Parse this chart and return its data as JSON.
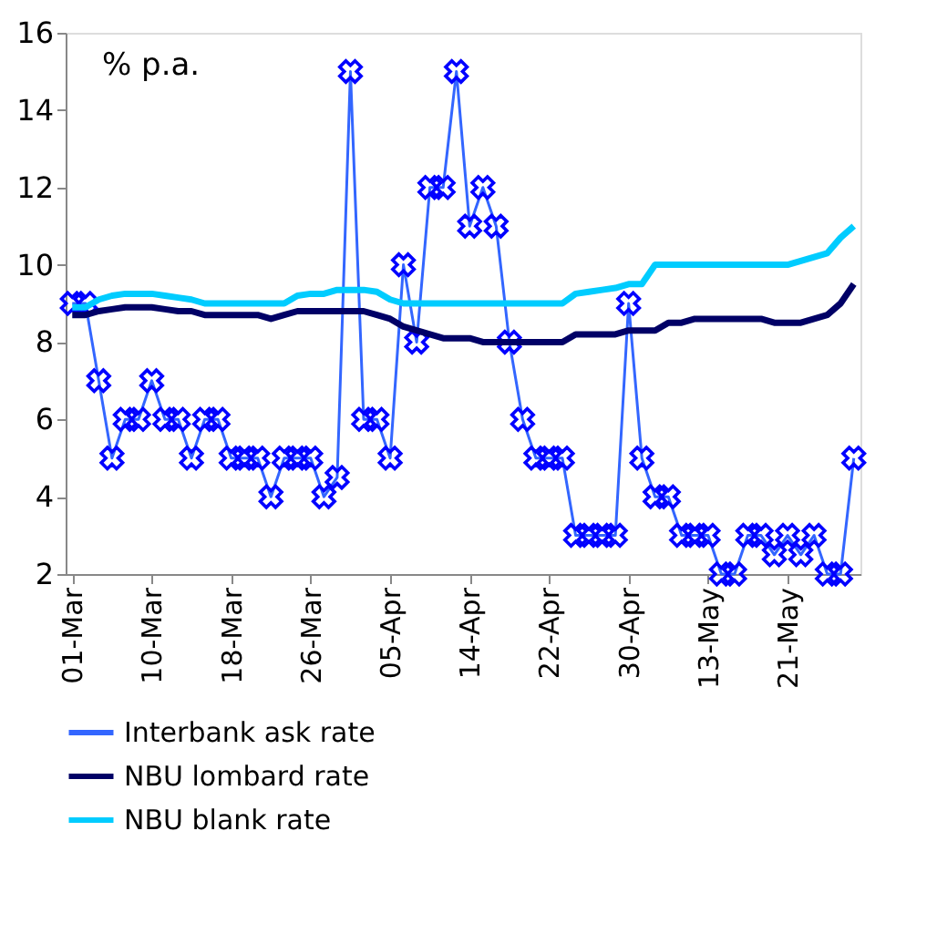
{
  "chart_data": {
    "type": "line",
    "ylabel": "% p.a.",
    "categories": [
      "01-Mar",
      null,
      null,
      null,
      null,
      null,
      "10-Mar",
      null,
      null,
      null,
      null,
      null,
      "18-Mar",
      null,
      null,
      null,
      null,
      null,
      "26-Mar",
      null,
      null,
      null,
      null,
      null,
      "05-Apr",
      null,
      null,
      null,
      null,
      null,
      "14-Apr",
      null,
      null,
      null,
      null,
      null,
      "22-Apr",
      null,
      null,
      null,
      null,
      null,
      "30-Apr",
      null,
      null,
      null,
      null,
      null,
      "13-May",
      null,
      null,
      null,
      null,
      null,
      "21-May",
      null,
      null,
      null,
      null,
      null
    ],
    "series": [
      {
        "name": "Interbank ask rate",
        "color": "#3366ff",
        "marker": "cross",
        "values": [
          9,
          9,
          7,
          5,
          6,
          6,
          7,
          6,
          6,
          5,
          6,
          6,
          5,
          5,
          5,
          4,
          5,
          5,
          5,
          4,
          4.5,
          15,
          6,
          6,
          5,
          10,
          8,
          12,
          12,
          15,
          11,
          12,
          11,
          8,
          6,
          5,
          5,
          5,
          3,
          3,
          3,
          3,
          9,
          5,
          4,
          4,
          3,
          3,
          3,
          2,
          2,
          3,
          3,
          2.5,
          3,
          2.5,
          3,
          2,
          2,
          5
        ]
      },
      {
        "name": "NBU lombard rate",
        "color": "#000066",
        "marker": "none",
        "values": [
          8.7,
          8.7,
          8.8,
          8.85,
          8.9,
          8.9,
          8.9,
          8.85,
          8.8,
          8.8,
          8.7,
          8.7,
          8.7,
          8.7,
          8.7,
          8.6,
          8.7,
          8.8,
          8.8,
          8.8,
          8.8,
          8.8,
          8.8,
          8.7,
          8.6,
          8.4,
          8.3,
          8.2,
          8.1,
          8.1,
          8.1,
          8,
          8,
          8,
          8,
          8,
          8,
          8,
          8.2,
          8.2,
          8.2,
          8.2,
          8.3,
          8.3,
          8.3,
          8.5,
          8.5,
          8.6,
          8.6,
          8.6,
          8.6,
          8.6,
          8.6,
          8.5,
          8.5,
          8.5,
          8.6,
          8.7,
          9,
          9.5
        ]
      },
      {
        "name": "NBU blank rate",
        "color": "#00ccff",
        "marker": "none",
        "values": [
          8.9,
          8.9,
          9.1,
          9.2,
          9.25,
          9.25,
          9.25,
          9.2,
          9.15,
          9.1,
          9,
          9,
          9,
          9,
          9,
          9,
          9,
          9.2,
          9.25,
          9.25,
          9.35,
          9.35,
          9.35,
          9.3,
          9.1,
          9,
          9,
          9,
          9,
          9,
          9,
          9,
          9,
          9,
          9,
          9,
          9,
          9,
          9.25,
          9.3,
          9.35,
          9.4,
          9.5,
          9.5,
          10,
          10,
          10,
          10,
          10,
          10,
          10,
          10,
          10,
          10,
          10,
          10.1,
          10.2,
          10.3,
          10.7,
          11
        ]
      }
    ],
    "ylim": [
      2,
      16
    ],
    "yticks": [
      2,
      4,
      6,
      8,
      10,
      12,
      14,
      16
    ],
    "grid": false,
    "legend": "bottom",
    "line_style": "solid"
  }
}
